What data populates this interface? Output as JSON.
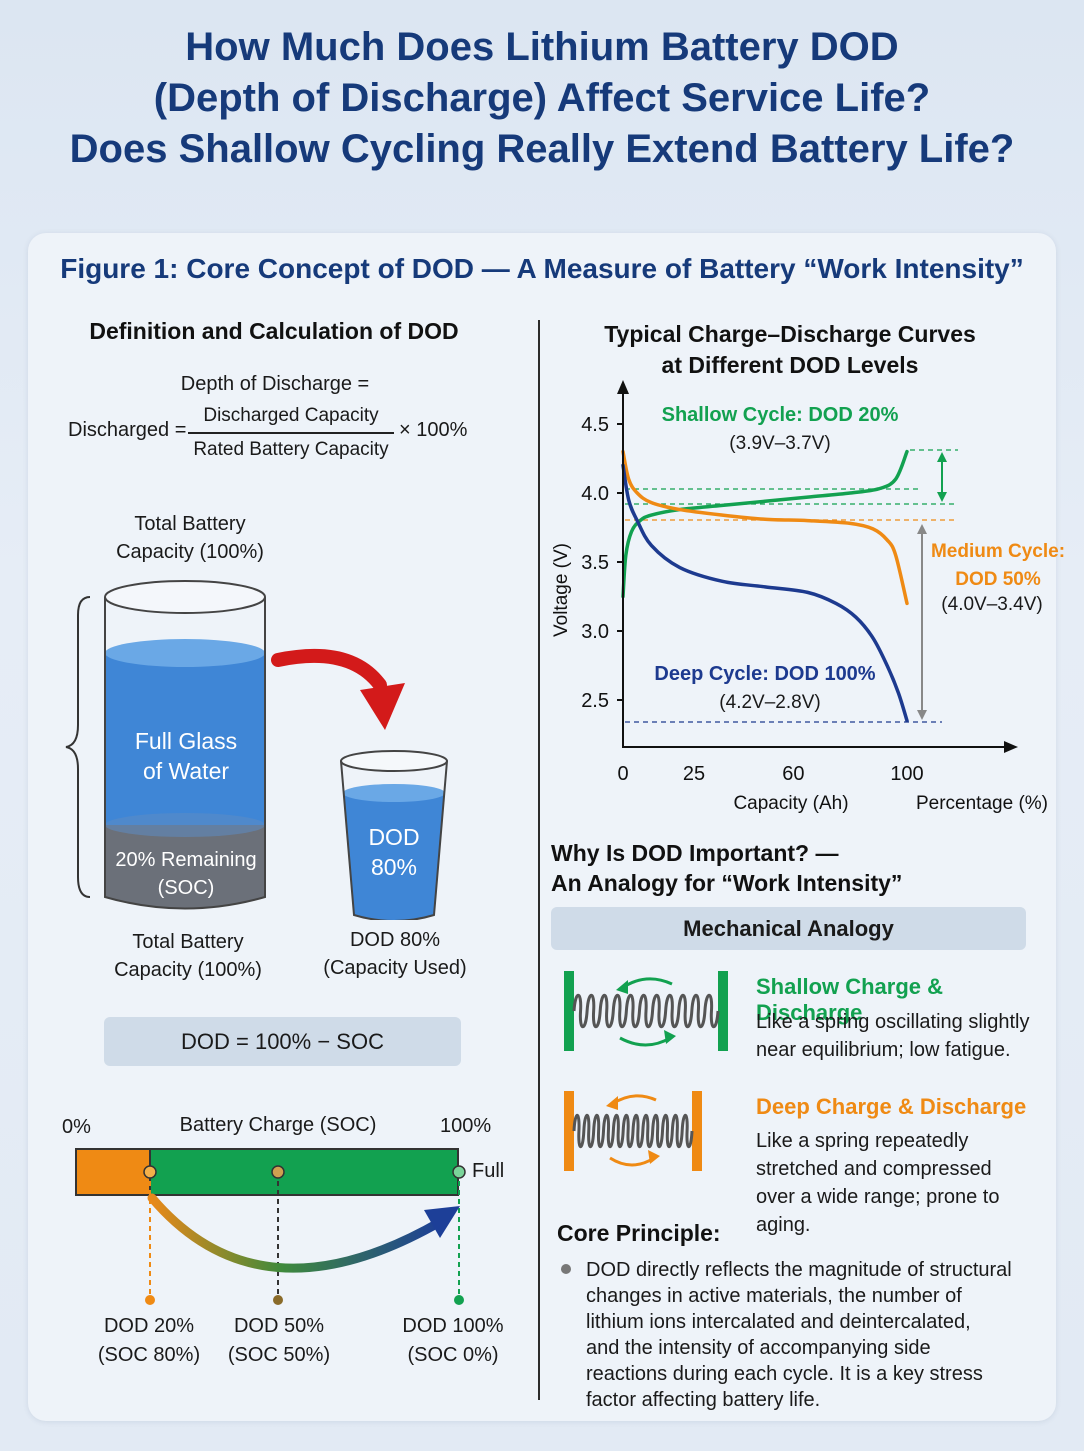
{
  "title_lines": [
    "How Much Does Lithium Battery DOD",
    "(Depth of Discharge) Affect Service Life?",
    "Does Shallow Cycling Really Extend Battery Life?"
  ],
  "figure_title": "Figure 1: Core Concept of DOD — A Measure of Battery “Work Intensity”",
  "definition": {
    "heading": "Definition and Calculation of DOD",
    "formula_line1": "Depth of Discharge =",
    "formula_prefix": "Discharged =",
    "numerator": "Discharged Capacity",
    "denominator": "Rated Battery Capacity",
    "multiplier": "× 100%"
  },
  "glass_diagram": {
    "top_label_lines": [
      "Total Battery",
      "Capacity (100%)"
    ],
    "big_glass_label_lines": [
      "Full Glass",
      "of Water"
    ],
    "remaining_label_lines": [
      "20% Remaining",
      "(SOC)"
    ],
    "bottom_label_lines": [
      "Total Battery",
      "Capacity (100%)"
    ],
    "small_glass_label_lines": [
      "DOD",
      "80%"
    ],
    "small_bottom_label_lines": [
      "DOD 80%",
      "(Capacity Used)"
    ],
    "remaining_fraction": 0.2,
    "colors": {
      "water": "#3f86d6",
      "remaining": "#6b7079",
      "arrow": "#d31a1a"
    }
  },
  "dod_formula_pill": "DOD = 100% − SOC",
  "soc_bar": {
    "left_label": "0%",
    "center_label": "Battery Charge (SOC)",
    "right_label": "100%",
    "full_label": "Full",
    "orange_fraction": 0.2,
    "markers": [
      {
        "label_lines": [
          "DOD 20%",
          "(SOC 80%)"
        ],
        "color": "#ef8a14"
      },
      {
        "label_lines": [
          "DOD 50%",
          "(SOC 50%)"
        ],
        "color": "#8a6b2a"
      },
      {
        "label_lines": [
          "DOD 100%",
          "(SOC 0%)"
        ],
        "color": "#12a150"
      }
    ],
    "colors": {
      "orange": "#ef8a14",
      "green": "#12a150"
    }
  },
  "chart_data": {
    "type": "line",
    "title": "Typical Charge–Discharge Curves at Different DOD Levels",
    "title_lines": [
      "Typical Charge–Discharge Curves",
      "at Different DOD Levels"
    ],
    "ylabel": "Voltage (V)",
    "xlabel": "Capacity (Ah)",
    "xlabel2": "Percentage (%)",
    "xlim": [
      0,
      140
    ],
    "ylim": [
      2.3,
      4.7
    ],
    "xticks": [
      0,
      25,
      60,
      100
    ],
    "yticks": [
      2.5,
      3.0,
      3.5,
      4.0,
      4.5
    ],
    "series": [
      {
        "name": "Shallow Cycle: DOD 20%",
        "range_label": "(3.9V–3.7V)",
        "color": "#12a150",
        "x": [
          0,
          1,
          3,
          6,
          10,
          20,
          35,
          50,
          65,
          80,
          90,
          96,
          100
        ],
        "y": [
          3.25,
          3.55,
          3.72,
          3.8,
          3.84,
          3.88,
          3.91,
          3.94,
          3.97,
          4.0,
          4.03,
          4.1,
          4.3
        ]
      },
      {
        "name": "Medium Cycle: DOD 50%",
        "range_label": "(4.0V–3.4V)",
        "color": "#ef8a14",
        "x": [
          0,
          2,
          5,
          10,
          20,
          35,
          50,
          65,
          80,
          88,
          93,
          96,
          100
        ],
        "y": [
          4.3,
          4.1,
          4.0,
          3.93,
          3.88,
          3.84,
          3.81,
          3.8,
          3.78,
          3.74,
          3.66,
          3.55,
          3.2
        ]
      },
      {
        "name": "Deep Cycle: DOD 100%",
        "range_label": "(4.2V–2.8V)",
        "color": "#1d3a8f",
        "x": [
          0,
          2,
          5,
          10,
          20,
          35,
          50,
          65,
          75,
          82,
          88,
          93,
          97,
          100
        ],
        "y": [
          4.2,
          3.95,
          3.8,
          3.62,
          3.46,
          3.36,
          3.32,
          3.28,
          3.2,
          3.1,
          2.95,
          2.75,
          2.55,
          2.35
        ]
      }
    ]
  },
  "importance": {
    "heading_lines": [
      "Why Is DOD Important? —",
      "An Analogy for “Work Intensity”"
    ],
    "analogy_pill": "Mechanical Analogy",
    "items": [
      {
        "title": "Shallow Charge & Discharge",
        "desc_lines": [
          "Like a spring oscillating slightly",
          "near equilibrium; low fatigue."
        ],
        "color": "#12a150"
      },
      {
        "title": "Deep Charge & Discharge",
        "desc_lines": [
          "Like a spring repeatedly",
          "stretched and compressed",
          "over a wide range; prone to aging."
        ],
        "color": "#ef8a14"
      }
    ]
  },
  "core_principle": {
    "heading": "Core Principle:",
    "lines": [
      "DOD directly reflects the magnitude of structural",
      "changes in active materials, the number of",
      "lithium ions intercalated and deintercalated,",
      "and the intensity of accompanying side",
      "reactions during each cycle. It is a key stress",
      "factor affecting battery life."
    ]
  }
}
